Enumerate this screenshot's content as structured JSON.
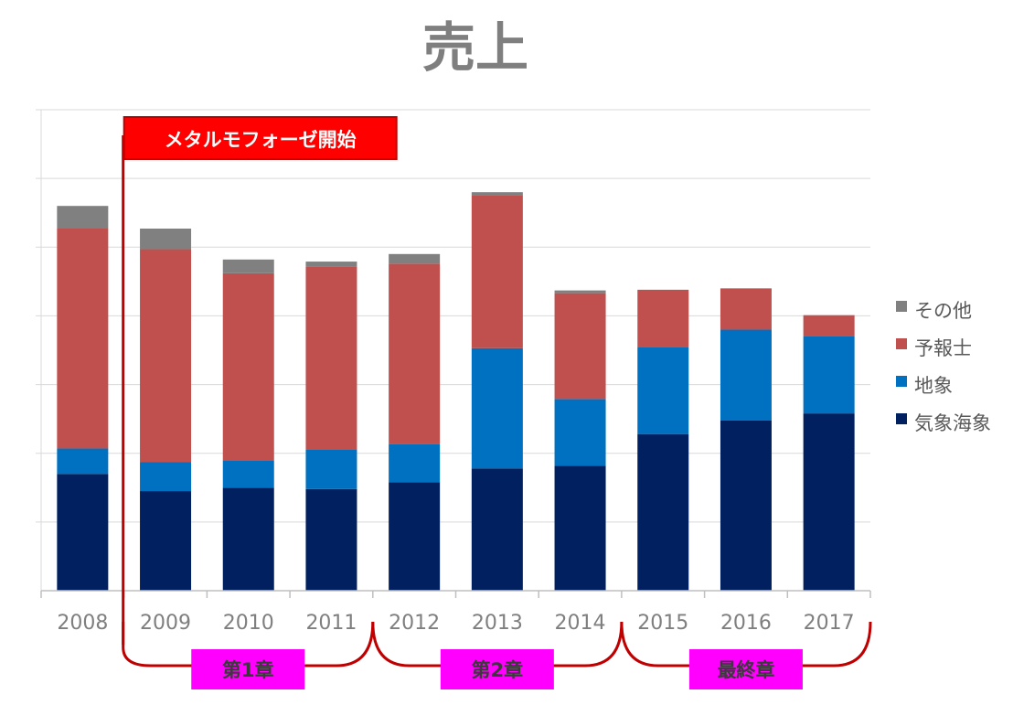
{
  "chart_data": {
    "type": "bar",
    "stacked": true,
    "title": "売上",
    "xlabel": "",
    "ylabel": "",
    "categories": [
      "2008",
      "2009",
      "2010",
      "2011",
      "2012",
      "2013",
      "2014",
      "2015",
      "2016",
      "2017"
    ],
    "ylim": [
      0,
      7
    ],
    "y_gridlines": [
      0,
      1,
      2,
      3,
      4,
      5,
      6,
      7
    ],
    "y_tick_labels_shown": false,
    "legend_position": "right",
    "series": [
      {
        "name": "気象海象",
        "color": "#002060",
        "values": [
          1.7,
          1.45,
          1.5,
          1.48,
          1.58,
          1.78,
          1.82,
          2.28,
          2.48,
          2.58
        ]
      },
      {
        "name": "地象",
        "color": "#0070c0",
        "values": [
          0.37,
          0.42,
          0.4,
          0.58,
          0.55,
          1.75,
          0.97,
          1.27,
          1.32,
          1.12
        ]
      },
      {
        "name": "予報士",
        "color": "#c0504d",
        "values": [
          3.2,
          3.1,
          2.72,
          2.66,
          2.63,
          2.23,
          1.54,
          0.83,
          0.6,
          0.31
        ]
      },
      {
        "name": "その他",
        "color": "#808080",
        "values": [
          0.33,
          0.3,
          0.2,
          0.07,
          0.14,
          0.04,
          0.04,
          0.0,
          0.0,
          0.0
        ]
      }
    ],
    "legend_order": [
      "その他",
      "予報士",
      "地象",
      "気象海象"
    ],
    "annotations": {
      "callout": {
        "text": "メタルモフォーゼ開始",
        "at_category": "2009",
        "color": "#ff0000",
        "line_color": "#c00000"
      },
      "chapters": [
        {
          "label": "第1章",
          "from": "2009",
          "to": "2011"
        },
        {
          "label": "第2章",
          "from": "2012",
          "to": "2014"
        },
        {
          "label": "最終章",
          "from": "2015",
          "to": "2017"
        }
      ],
      "chapter_label_bg": "#ff00ff",
      "bracket_color": "#c00000"
    }
  }
}
